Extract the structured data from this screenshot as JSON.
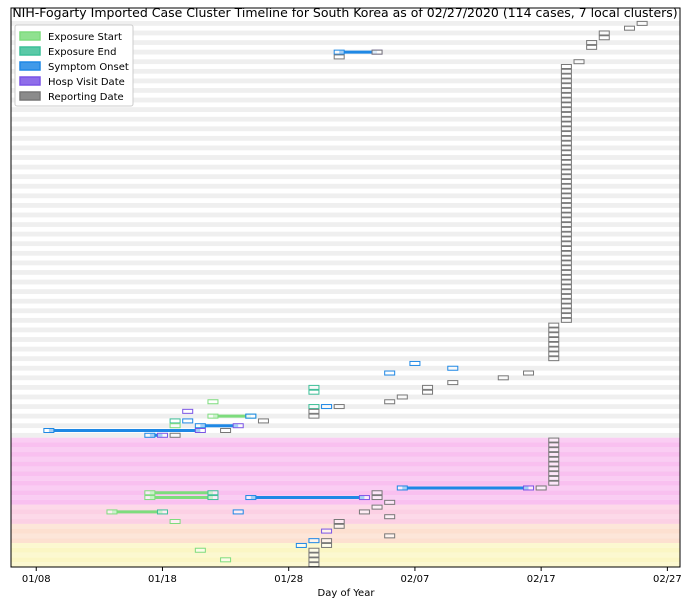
{
  "chart_data": {
    "type": "timeline",
    "title": "NIH-Fogarty Imported Case Cluster Timeline for South Korea as of 02/27/2020   (114 cases, 7 local clusters)",
    "x_label": "Day of Year",
    "xlim": [
      6,
      59
    ],
    "xticks": [
      {
        "value": 8,
        "label": "01/08"
      },
      {
        "value": 18,
        "label": "01/18"
      },
      {
        "value": 28,
        "label": "01/28"
      },
      {
        "value": 38,
        "label": "02/07"
      },
      {
        "value": 48,
        "label": "02/17"
      },
      {
        "value": 58,
        "label": "02/27"
      }
    ],
    "legend": "upper left",
    "stripe_color": "#efefef",
    "cluster_bands": [
      {
        "first_row": 87,
        "last_row": 100,
        "color": "#f9c0f0"
      },
      {
        "first_row": 101,
        "last_row": 104,
        "color": "#fcd0e4"
      },
      {
        "first_row": 105,
        "last_row": 108,
        "color": "#fde0d0"
      },
      {
        "first_row": 109,
        "last_row": 113,
        "color": "#fbf6c4"
      }
    ],
    "series": [
      {
        "name": "Exposure Start",
        "color": "#7ddc7d",
        "values": [
          null,
          null,
          null,
          null,
          null,
          null,
          null,
          null,
          null,
          null,
          null,
          null,
          null,
          null,
          null,
          null,
          null,
          null,
          null,
          null,
          null,
          null,
          null,
          null,
          null,
          null,
          null,
          null,
          null,
          null,
          null,
          null,
          null,
          null,
          null,
          null,
          null,
          null,
          null,
          null,
          null,
          null,
          null,
          null,
          null,
          null,
          null,
          null,
          null,
          null,
          null,
          null,
          null,
          null,
          null,
          null,
          null,
          null,
          null,
          null,
          null,
          null,
          null,
          null,
          null,
          null,
          null,
          null,
          null,
          null,
          null,
          null,
          null,
          null,
          null,
          null,
          null,
          null,
          null,
          22,
          null,
          null,
          22,
          null,
          19,
          null,
          null,
          null,
          null,
          null,
          null,
          null,
          null,
          null,
          null,
          null,
          null,
          null,
          17,
          17,
          null,
          null,
          14,
          null,
          19,
          null,
          null,
          null,
          null,
          null,
          21,
          null,
          23,
          null
        ]
      },
      {
        "name": "Exposure End",
        "color": "#3dbf98",
        "values": [
          null,
          null,
          null,
          null,
          null,
          null,
          null,
          null,
          null,
          null,
          null,
          null,
          null,
          null,
          null,
          null,
          null,
          null,
          null,
          null,
          null,
          null,
          null,
          null,
          null,
          null,
          null,
          null,
          null,
          null,
          null,
          null,
          null,
          null,
          null,
          null,
          null,
          null,
          null,
          null,
          null,
          null,
          null,
          null,
          null,
          null,
          null,
          null,
          null,
          null,
          null,
          null,
          null,
          null,
          null,
          null,
          null,
          null,
          null,
          null,
          null,
          null,
          null,
          null,
          null,
          null,
          null,
          null,
          null,
          null,
          null,
          null,
          null,
          null,
          null,
          null,
          30,
          30,
          null,
          null,
          30,
          null,
          25,
          19,
          null,
          null,
          null,
          null,
          null,
          null,
          null,
          null,
          null,
          null,
          null,
          null,
          null,
          null,
          22,
          22,
          null,
          null,
          18,
          null,
          null,
          null,
          null,
          null,
          null,
          null,
          null,
          null,
          null,
          null
        ]
      },
      {
        "name": "Symptom Onset",
        "color": "#1e88e5",
        "values": [
          null,
          null,
          null,
          null,
          null,
          null,
          32,
          null,
          null,
          null,
          null,
          null,
          null,
          null,
          null,
          null,
          null,
          null,
          null,
          null,
          null,
          null,
          null,
          null,
          null,
          null,
          null,
          null,
          null,
          null,
          null,
          null,
          null,
          null,
          null,
          null,
          null,
          null,
          null,
          null,
          null,
          null,
          null,
          null,
          null,
          null,
          null,
          null,
          null,
          null,
          null,
          null,
          null,
          null,
          null,
          null,
          null,
          null,
          null,
          null,
          null,
          null,
          null,
          null,
          null,
          null,
          null,
          null,
          null,
          null,
          null,
          38,
          41,
          36,
          null,
          null,
          null,
          null,
          null,
          null,
          31,
          null,
          25,
          20,
          21,
          9,
          17,
          null,
          null,
          null,
          null,
          null,
          null,
          null,
          null,
          null,
          null,
          37,
          null,
          25,
          null,
          null,
          24,
          null,
          null,
          null,
          null,
          null,
          30,
          29,
          null,
          null,
          null,
          null
        ]
      },
      {
        "name": "Hosp Visit Date",
        "color": "#7b55e6",
        "values": [
          null,
          null,
          null,
          null,
          null,
          null,
          35,
          null,
          null,
          null,
          null,
          null,
          null,
          null,
          null,
          null,
          null,
          null,
          null,
          null,
          null,
          null,
          null,
          null,
          null,
          null,
          null,
          null,
          null,
          null,
          null,
          null,
          null,
          null,
          null,
          null,
          null,
          null,
          null,
          null,
          null,
          null,
          null,
          null,
          null,
          null,
          null,
          null,
          null,
          null,
          null,
          null,
          null,
          null,
          null,
          null,
          null,
          null,
          null,
          null,
          null,
          null,
          null,
          null,
          null,
          null,
          null,
          null,
          null,
          null,
          null,
          null,
          null,
          null,
          null,
          null,
          null,
          null,
          null,
          null,
          null,
          20,
          null,
          null,
          24,
          21,
          18,
          null,
          null,
          null,
          null,
          null,
          null,
          null,
          null,
          null,
          null,
          47,
          null,
          34,
          null,
          null,
          null,
          null,
          null,
          null,
          31,
          null,
          null,
          null,
          null,
          null,
          null,
          null
        ]
      },
      {
        "name": "Reporting Date",
        "color": "#777777",
        "values": [
          56,
          55,
          53,
          53,
          52,
          52,
          35,
          32,
          51,
          50,
          50,
          50,
          50,
          50,
          50,
          50,
          50,
          50,
          50,
          50,
          50,
          50,
          50,
          50,
          50,
          50,
          50,
          50,
          50,
          50,
          50,
          50,
          50,
          50,
          50,
          50,
          50,
          50,
          50,
          50,
          50,
          50,
          50,
          50,
          50,
          50,
          50,
          50,
          50,
          50,
          50,
          50,
          50,
          50,
          50,
          50,
          50,
          50,
          50,
          50,
          50,
          50,
          50,
          49,
          49,
          49,
          49,
          49,
          49,
          49,
          49,
          null,
          null,
          47,
          45,
          41,
          39,
          39,
          37,
          36,
          32,
          30,
          30,
          26,
          null,
          23,
          19,
          49,
          49,
          49,
          49,
          49,
          49,
          49,
          49,
          49,
          49,
          48,
          35,
          35,
          36,
          35,
          34,
          36,
          32,
          32,
          null,
          36,
          31,
          31,
          30,
          30,
          30,
          30
        ]
      }
    ]
  }
}
